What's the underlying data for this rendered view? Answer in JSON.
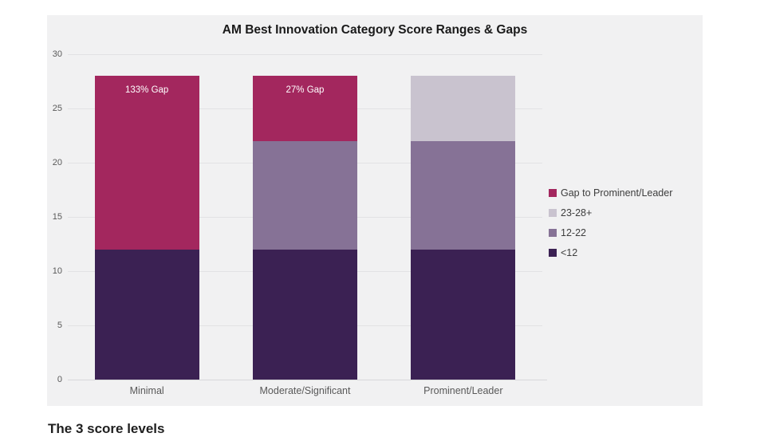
{
  "chart_data": {
    "type": "bar",
    "subtype": "stacked",
    "title": "AM Best Innovation Category Score Ranges & Gaps",
    "categories": [
      "Minimal",
      "Moderate/Significant",
      "Prominent/Leader"
    ],
    "series": [
      {
        "name": "<12",
        "color": "#3B2153",
        "values": [
          12,
          12,
          12
        ]
      },
      {
        "name": "12-22",
        "color": "#867296",
        "values": [
          0,
          10,
          10
        ]
      },
      {
        "name": "23-28+",
        "color": "#C9C3CF",
        "values": [
          0,
          0,
          6
        ]
      },
      {
        "name": "Gap to Prominent/Leader",
        "color": "#A3275E",
        "values": [
          16,
          6,
          0
        ]
      }
    ],
    "bar_totals": [
      28,
      28,
      28
    ],
    "bar_labels": [
      "133% Gap",
      "27% Gap",
      ""
    ],
    "yticks": [
      0,
      5,
      10,
      15,
      20,
      25,
      30
    ],
    "ylim": [
      0,
      30
    ],
    "xlabel": "",
    "ylabel": "",
    "grid": true,
    "legend_position": "right",
    "legend_order": [
      "Gap to Prominent/Leader",
      "23-28+",
      "12-22",
      "<12"
    ]
  },
  "footer": {
    "partial_text": "The 3 score levels"
  },
  "colors": {
    "page_background": "#FFFFFF",
    "panel_background": "#F1F1F2",
    "gridline": "#E2E2E4",
    "axis_line": "#D8D8DA",
    "tick_text": "#595959",
    "category_text": "#595959",
    "title_text": "#1A1A1A",
    "annotation_text": "#FFFFFF",
    "legend_text": "#3D3D3D"
  }
}
